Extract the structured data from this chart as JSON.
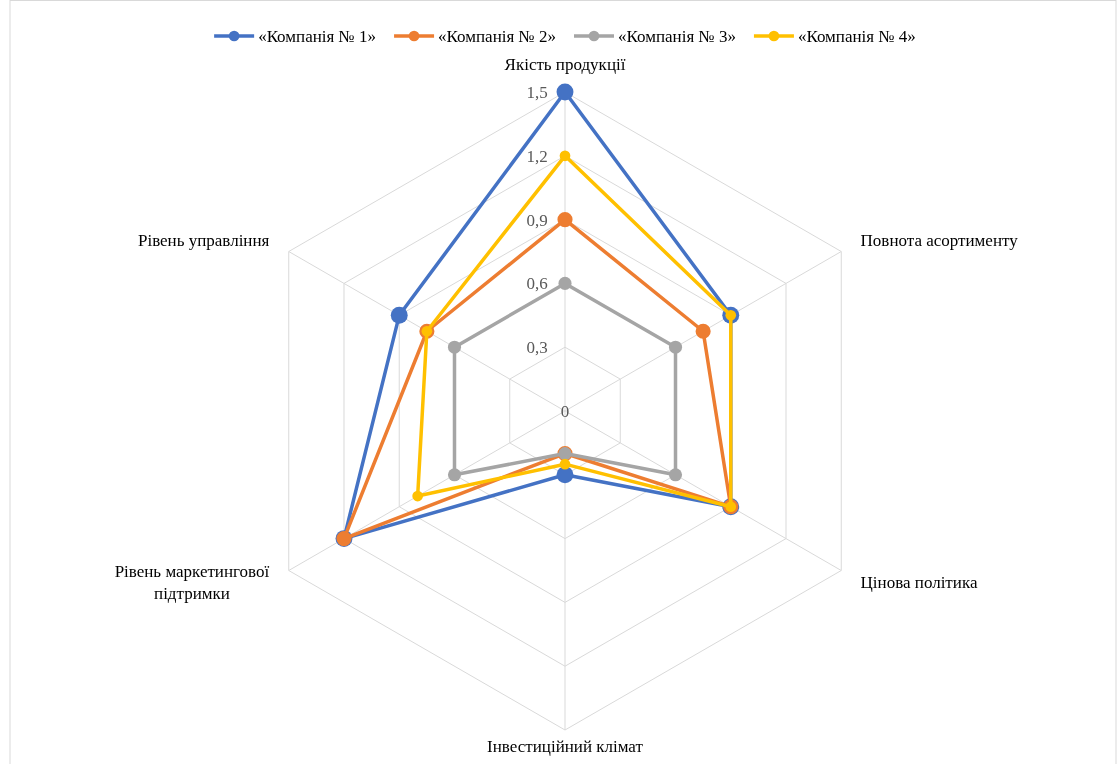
{
  "chart_data": {
    "type": "radar",
    "categories": [
      "Якість продукції",
      "Повнота асортименту",
      "Цінова політика",
      "Інвестиційний клімат",
      "Рівень маркетингової підтримки",
      "Рівень управління"
    ],
    "series": [
      {
        "name": "«Компанія № 1»",
        "color": "#4472c4",
        "values": [
          1.5,
          0.9,
          0.9,
          0.3,
          1.2,
          0.9
        ]
      },
      {
        "name": "«Компанія № 2»",
        "color": "#ed7d31",
        "values": [
          0.9,
          0.75,
          0.9,
          0.2,
          1.2,
          0.75
        ]
      },
      {
        "name": "«Компанія № 3»",
        "color": "#a5a5a5",
        "values": [
          0.6,
          0.6,
          0.6,
          0.2,
          0.6,
          0.6
        ]
      },
      {
        "name": "«Компанія № 4»",
        "color": "#ffc000",
        "values": [
          1.2,
          0.9,
          0.9,
          0.25,
          0.8,
          0.75
        ]
      }
    ],
    "ylim": [
      0,
      1.5
    ],
    "yticks": [
      0,
      {
        "value": 0.3,
        "label": "0,3"
      },
      {
        "value": 0.6,
        "label": "0,6"
      },
      {
        "value": 0.9,
        "label": "0,9"
      },
      {
        "value": 1.2,
        "label": "1,2"
      },
      {
        "value": 1.5,
        "label": "1,5"
      }
    ],
    "grid": true,
    "legend": "top",
    "marker": "circle",
    "line_style": "solid"
  }
}
